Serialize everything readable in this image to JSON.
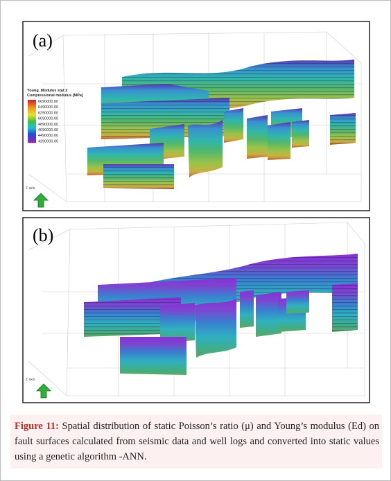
{
  "panels": [
    {
      "label": "(a)",
      "axis_label": "Z axis",
      "legend": {
        "title": "Young_Modulus stat 2",
        "subtitle": "Compressional modulus [MPa]",
        "labels": [
          "6690000.00",
          "6490000.00",
          "6290000.00",
          "6090000.00",
          "4890000.00",
          "4690000.00",
          "4490000.00",
          "4290000.00"
        ]
      }
    },
    {
      "label": "(b)",
      "axis_label": "Z axis"
    }
  ],
  "caption": {
    "label": "Figure 11:",
    "text": "Spatial distribution of static Poisson’s ratio (μ) and Young’s modulus (Ed) on fault surfaces calculated from seismic data and well logs and converted into static values using a genetic algorithm -ANN."
  }
}
